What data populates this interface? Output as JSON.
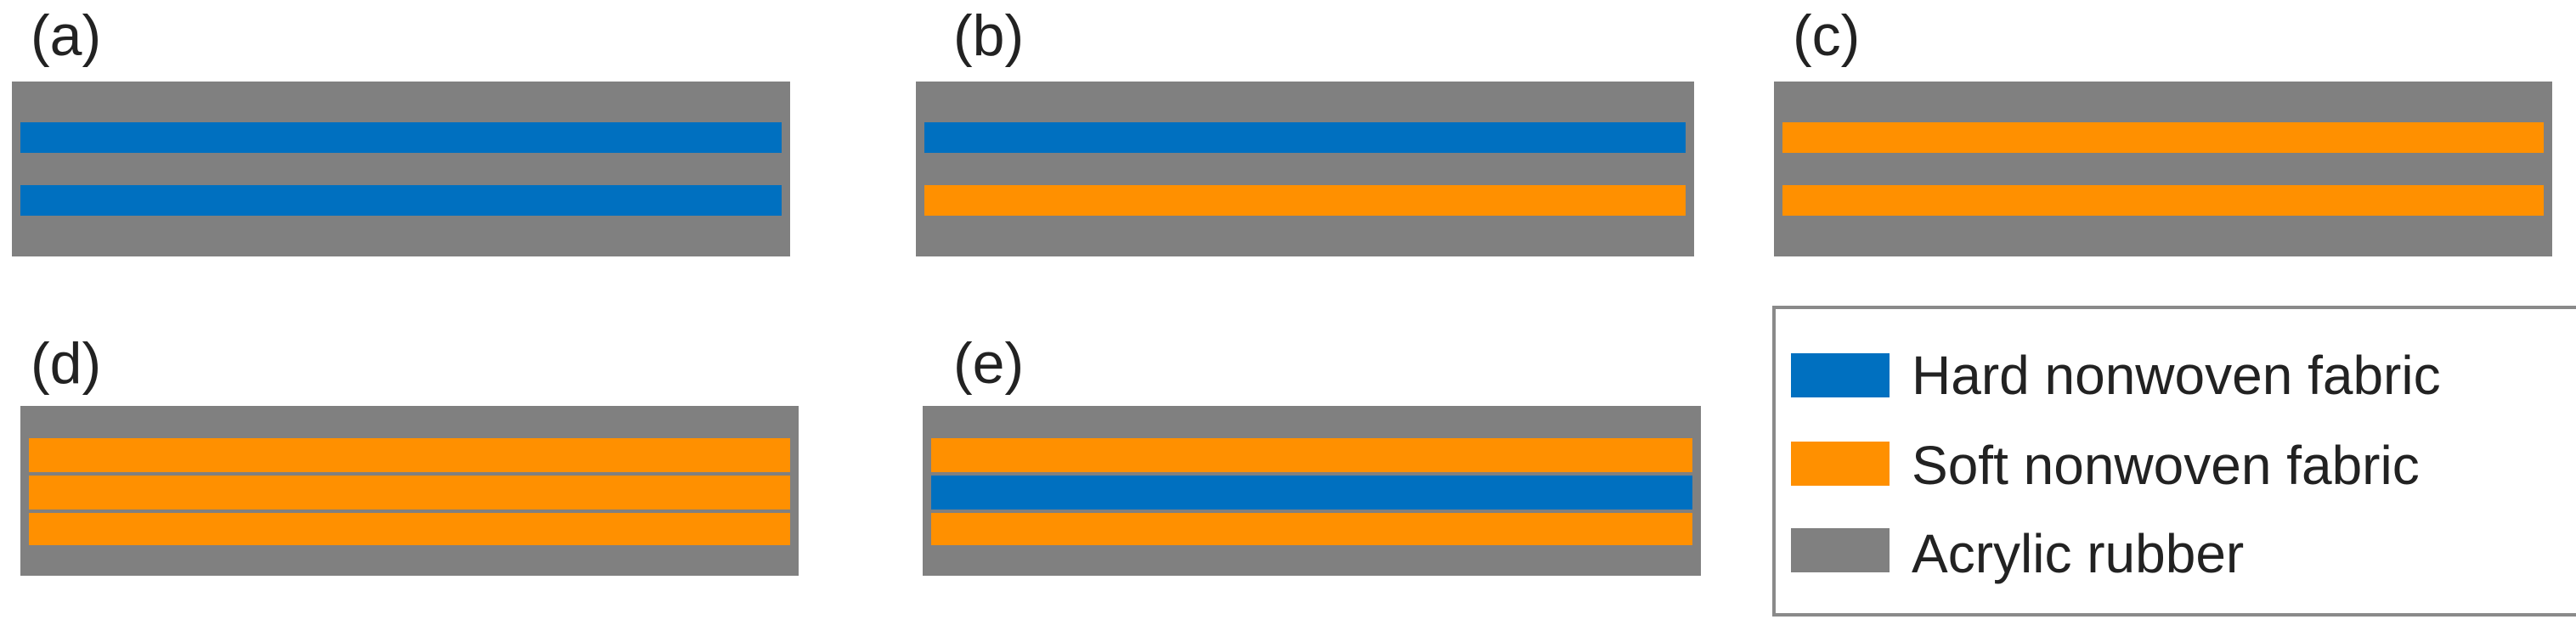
{
  "colors": {
    "hard": "#0070c0",
    "soft": "#ff9000",
    "rubber": "#808080"
  },
  "panels": [
    {
      "label": "(a)",
      "layers": [
        "hard",
        "hard"
      ]
    },
    {
      "label": "(b)",
      "layers": [
        "hard",
        "soft"
      ]
    },
    {
      "label": "(c)",
      "layers": [
        "soft",
        "soft"
      ]
    },
    {
      "label": "(d)",
      "layers": [
        "soft",
        "soft",
        "soft"
      ]
    },
    {
      "label": "(e)",
      "layers": [
        "soft",
        "hard",
        "soft"
      ]
    }
  ],
  "legend": {
    "items": [
      {
        "key": "hard",
        "label": "Hard nonwoven fabric"
      },
      {
        "key": "soft",
        "label": "Soft nonwoven fabric"
      },
      {
        "key": "rubber",
        "label": "Acrylic rubber"
      }
    ]
  }
}
